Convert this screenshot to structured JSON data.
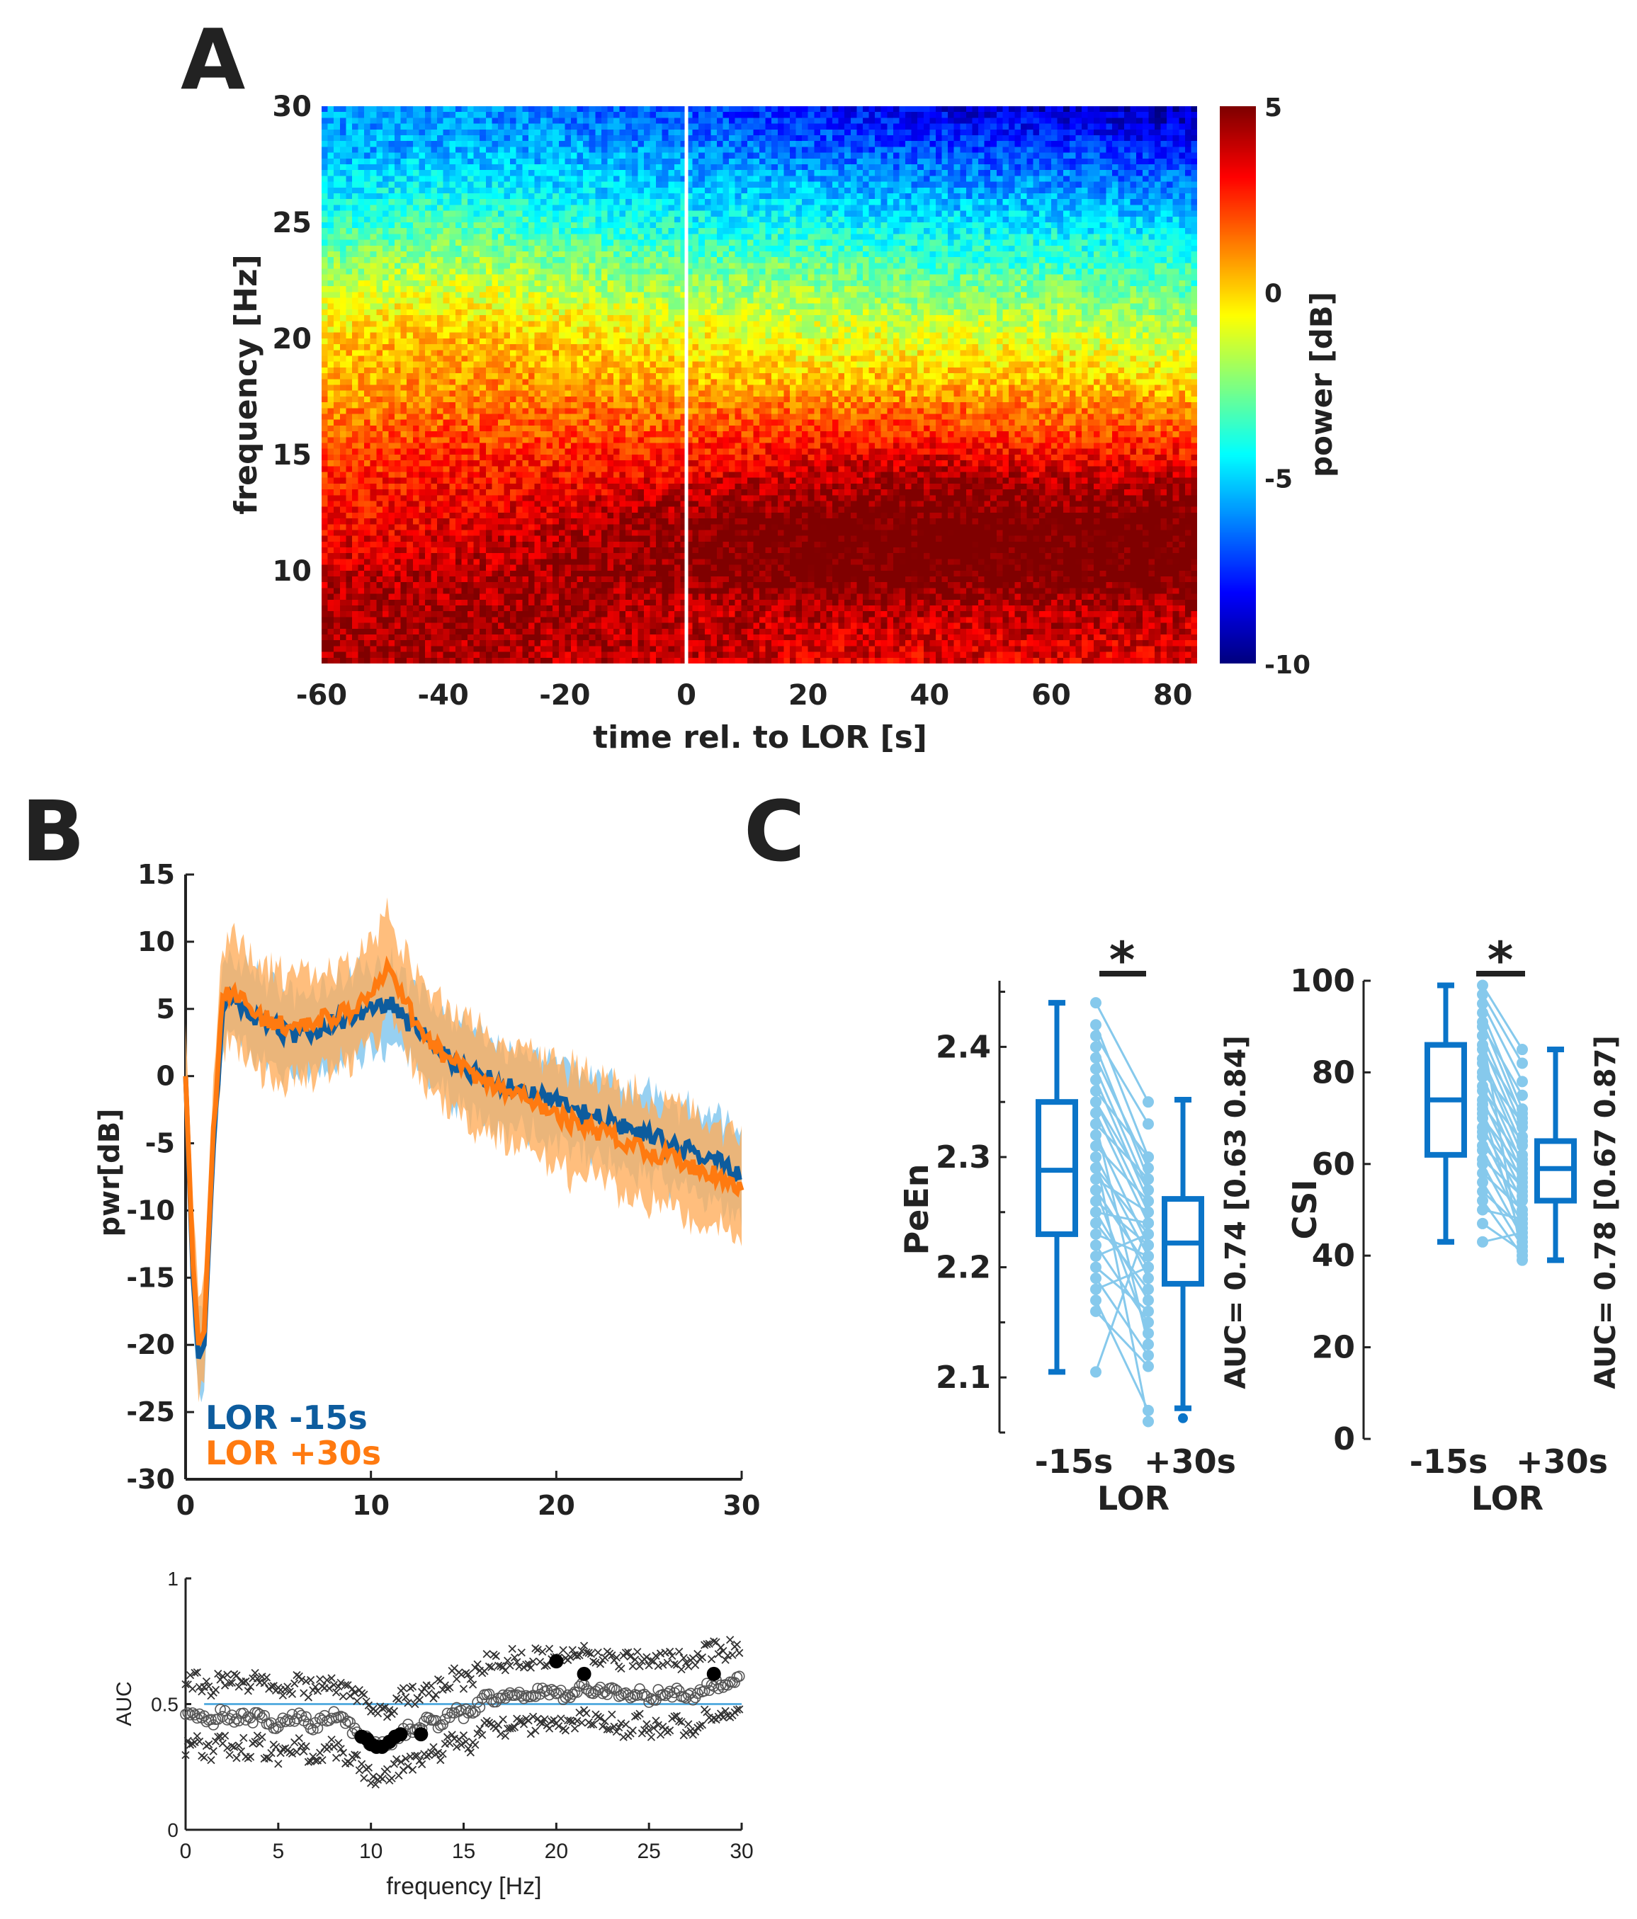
{
  "panel_labels": {
    "a": "A",
    "b": "B",
    "c": "C"
  },
  "colors": {
    "blue_line": "#0d5c9e",
    "blue_band": "#8ccbf0",
    "orange_line": "#ff7a10",
    "orange_band": "#ffae5c",
    "box": "#0a74c8",
    "pair": "#86c9ec",
    "chance": "#5aaee0"
  },
  "chart_data": [
    {
      "id": "spectrogram",
      "type": "heatmap",
      "xlabel": "time rel. to LOR [s]",
      "ylabel": "frequency [Hz]",
      "xlim": [
        -60,
        84
      ],
      "ylim": [
        6,
        30
      ],
      "xticks": [
        -60,
        -40,
        -20,
        0,
        20,
        40,
        60,
        80
      ],
      "yticks": [
        10,
        15,
        20,
        25,
        30
      ],
      "marker_line_x": 0,
      "colorbar": {
        "label": "power [dB]",
        "range": [
          -10,
          5
        ],
        "ticks": [
          -10,
          -5,
          0,
          5
        ],
        "colormap": "jet"
      },
      "freqs": [
        6,
        8,
        10,
        12,
        14,
        16,
        18,
        20,
        22,
        24,
        26,
        28,
        30
      ],
      "times": [
        -60,
        -40,
        -20,
        0,
        20,
        40,
        60,
        84
      ],
      "power_db": [
        [
          4.5,
          4.5,
          4,
          4,
          3.5,
          3.5,
          3.5,
          3.5
        ],
        [
          4.5,
          4.5,
          4.5,
          4,
          4,
          4,
          4,
          4
        ],
        [
          4,
          4,
          4.5,
          5,
          5.5,
          5.5,
          5.5,
          5.5
        ],
        [
          3,
          3.5,
          4,
          5,
          5.5,
          5.5,
          5.5,
          5.5
        ],
        [
          2.5,
          3,
          3,
          3.5,
          4,
          4.5,
          4,
          4
        ],
        [
          1.5,
          2,
          2,
          2,
          2.5,
          2.5,
          2,
          2
        ],
        [
          0.5,
          1,
          1,
          0.5,
          0.5,
          0.5,
          0.5,
          0
        ],
        [
          0,
          0.5,
          0,
          -0.5,
          -1,
          -1,
          -1,
          -1.5
        ],
        [
          -1.5,
          -1,
          -1.5,
          -2,
          -2,
          -2.5,
          -2.5,
          -3
        ],
        [
          -3,
          -2.5,
          -3,
          -3.5,
          -3.5,
          -4,
          -4,
          -4
        ],
        [
          -4.5,
          -4,
          -4.5,
          -5,
          -5,
          -5.5,
          -5.5,
          -6
        ],
        [
          -5.5,
          -5.5,
          -5.5,
          -6,
          -6.5,
          -7,
          -7,
          -7.5
        ],
        [
          -6,
          -6,
          -6.5,
          -7,
          -8,
          -8.5,
          -9,
          -9.5
        ]
      ]
    },
    {
      "id": "spectrum",
      "type": "line",
      "xlabel": "",
      "ylabel": "pwr[dB]",
      "xlim": [
        0,
        30
      ],
      "ylim": [
        -30,
        15
      ],
      "xticks": [
        0,
        10,
        20,
        30
      ],
      "yticks": [
        -30,
        -25,
        -20,
        -15,
        -10,
        -5,
        0,
        5,
        10,
        15
      ],
      "legend_position": "bottom-left",
      "x": [
        0,
        0.4,
        0.7,
        1,
        1.5,
        2,
        2.5,
        3,
        4,
        5,
        6,
        7,
        8,
        9,
        10,
        11,
        12,
        13,
        14,
        15,
        16,
        17,
        18,
        19,
        20,
        21,
        22,
        23,
        24,
        25,
        26,
        27,
        28,
        29,
        30
      ],
      "series": [
        {
          "name": "LOR -15s",
          "values": [
            0,
            -15,
            -21,
            -20,
            -5,
            5,
            6,
            5,
            4,
            3.5,
            3,
            3.5,
            4,
            4.5,
            5,
            5.5,
            4,
            3,
            1.5,
            0.5,
            0,
            -0.5,
            -1,
            -1.5,
            -2,
            -2.5,
            -3,
            -3.5,
            -4,
            -4.5,
            -5,
            -5.5,
            -6,
            -6.5,
            -7.5
          ],
          "band": 3
        },
        {
          "name": "LOR +30s",
          "values": [
            0,
            -14,
            -20,
            -19,
            -4,
            5.5,
            6.5,
            5.5,
            4.5,
            4,
            3.5,
            4,
            4.5,
            5,
            6,
            8,
            5,
            3,
            1.5,
            0.5,
            -0.5,
            -1,
            -1.5,
            -2,
            -3,
            -3.5,
            -4,
            -4.5,
            -5,
            -5.5,
            -6,
            -6.5,
            -7,
            -7.5,
            -8.5
          ],
          "band": 3.8
        }
      ]
    },
    {
      "id": "auc_spectrum",
      "type": "scatter",
      "xlabel": "frequency [Hz]",
      "ylabel": "AUC",
      "xlim": [
        0,
        30
      ],
      "ylim": [
        0,
        1
      ],
      "xticks": [
        0,
        5,
        10,
        15,
        20,
        25,
        30
      ],
      "yticks": [
        0,
        0.5,
        1
      ],
      "chance_level": 0.5,
      "x": [
        0,
        0.5,
        1,
        1.5,
        2,
        2.5,
        3,
        3.5,
        4,
        4.5,
        5,
        5.5,
        6,
        6.5,
        7,
        7.5,
        8,
        8.5,
        9,
        9.5,
        10,
        10.5,
        11,
        11.5,
        12,
        12.5,
        13,
        13.5,
        14,
        14.5,
        15,
        15.5,
        16,
        16.5,
        17,
        17.5,
        18,
        18.5,
        19,
        19.5,
        20,
        20.5,
        21,
        21.5,
        22,
        22.5,
        23,
        23.5,
        24,
        24.5,
        25,
        25.5,
        26,
        26.5,
        27,
        27.5,
        28,
        28.5,
        29,
        29.5,
        30
      ],
      "auc": [
        0.45,
        0.46,
        0.44,
        0.43,
        0.47,
        0.44,
        0.45,
        0.44,
        0.46,
        0.42,
        0.42,
        0.43,
        0.45,
        0.43,
        0.41,
        0.44,
        0.45,
        0.43,
        0.4,
        0.37,
        0.34,
        0.33,
        0.35,
        0.37,
        0.4,
        0.38,
        0.43,
        0.42,
        0.44,
        0.48,
        0.46,
        0.47,
        0.52,
        0.53,
        0.51,
        0.55,
        0.54,
        0.53,
        0.55,
        0.54,
        0.56,
        0.53,
        0.55,
        0.57,
        0.54,
        0.56,
        0.55,
        0.52,
        0.53,
        0.55,
        0.5,
        0.54,
        0.53,
        0.55,
        0.52,
        0.54,
        0.56,
        0.58,
        0.57,
        0.59,
        0.6
      ],
      "ci_offsets": [
        -0.12,
        0.14
      ],
      "significant": [
        [
          9.5,
          0.37
        ],
        [
          9.8,
          0.36
        ],
        [
          10,
          0.34
        ],
        [
          10.3,
          0.33
        ],
        [
          10.6,
          0.33
        ],
        [
          11,
          0.35
        ],
        [
          11.3,
          0.37
        ],
        [
          11.6,
          0.38
        ],
        [
          12.7,
          0.38
        ],
        [
          20,
          0.67
        ],
        [
          21.5,
          0.62
        ],
        [
          28.5,
          0.62
        ]
      ]
    },
    {
      "id": "peen",
      "type": "box",
      "ylabel": "PeEn",
      "xlabel": "LOR",
      "categories": [
        "-15s",
        "+30s"
      ],
      "ylim": [
        2.05,
        2.46
      ],
      "yticks": [
        2.1,
        2.2,
        2.3,
        2.4
      ],
      "yticks_unlabeled": [
        2.05,
        2.15,
        2.25,
        2.35,
        2.45
      ],
      "boxes": [
        {
          "whisker_low": 2.105,
          "q1": 2.23,
          "median": 2.288,
          "q3": 2.35,
          "whisker_high": 2.44,
          "outliers": []
        },
        {
          "whisker_low": 2.072,
          "q1": 2.185,
          "median": 2.222,
          "q3": 2.262,
          "whisker_high": 2.352,
          "outliers": [
            2.063
          ]
        }
      ],
      "pairs": [
        [
          2.44,
          2.35
        ],
        [
          2.42,
          2.3
        ],
        [
          2.41,
          2.33
        ],
        [
          2.4,
          2.28
        ],
        [
          2.39,
          2.29
        ],
        [
          2.38,
          2.27
        ],
        [
          2.37,
          2.26
        ],
        [
          2.36,
          2.3
        ],
        [
          2.35,
          2.25
        ],
        [
          2.34,
          2.24
        ],
        [
          2.33,
          2.28
        ],
        [
          2.32,
          2.22
        ],
        [
          2.31,
          2.26
        ],
        [
          2.3,
          2.21
        ],
        [
          2.29,
          2.23
        ],
        [
          2.29,
          2.19
        ],
        [
          2.28,
          2.25
        ],
        [
          2.27,
          2.2
        ],
        [
          2.26,
          2.22
        ],
        [
          2.25,
          2.17
        ],
        [
          2.25,
          2.24
        ],
        [
          2.24,
          2.18
        ],
        [
          2.23,
          2.21
        ],
        [
          2.22,
          2.15
        ],
        [
          2.21,
          2.23
        ],
        [
          2.2,
          2.16
        ],
        [
          2.19,
          2.12
        ],
        [
          2.18,
          2.2
        ],
        [
          2.17,
          2.07
        ],
        [
          2.16,
          2.11
        ],
        [
          2.3,
          2.06
        ],
        [
          2.27,
          2.14
        ],
        [
          2.105,
          2.24
        ],
        [
          2.33,
          2.13
        ],
        [
          2.35,
          2.27
        ]
      ],
      "significance": "*",
      "auc_text": "AUC= 0.74 [0.63 0.84]"
    },
    {
      "id": "csi",
      "type": "box",
      "ylabel": "CSI",
      "xlabel": "LOR",
      "categories": [
        "-15s",
        "+30s"
      ],
      "ylim": [
        0,
        100
      ],
      "yticks": [
        0,
        20,
        40,
        60,
        80,
        100
      ],
      "boxes": [
        {
          "whisker_low": 43,
          "q1": 62,
          "median": 74,
          "q3": 86,
          "whisker_high": 99,
          "outliers": []
        },
        {
          "whisker_low": 39,
          "q1": 52,
          "median": 59,
          "q3": 65,
          "whisker_high": 85,
          "outliers": []
        }
      ],
      "pairs": [
        [
          99,
          85
        ],
        [
          97,
          82
        ],
        [
          95,
          78
        ],
        [
          93,
          72
        ],
        [
          91,
          70
        ],
        [
          90,
          75
        ],
        [
          88,
          68
        ],
        [
          86,
          66
        ],
        [
          85,
          71
        ],
        [
          83,
          64
        ],
        [
          82,
          62
        ],
        [
          80,
          69
        ],
        [
          79,
          60
        ],
        [
          77,
          58
        ],
        [
          76,
          65
        ],
        [
          74,
          56
        ],
        [
          73,
          61
        ],
        [
          71,
          54
        ],
        [
          70,
          59
        ],
        [
          68,
          52
        ],
        [
          67,
          57
        ],
        [
          66,
          49
        ],
        [
          64,
          55
        ],
        [
          63,
          47
        ],
        [
          61,
          53
        ],
        [
          60,
          44
        ],
        [
          58,
          50
        ],
        [
          56,
          42
        ],
        [
          54,
          46
        ],
        [
          52,
          40
        ],
        [
          50,
          48
        ],
        [
          47,
          41
        ],
        [
          43,
          45
        ],
        [
          88,
          39
        ],
        [
          72,
          43
        ]
      ],
      "significance": "*",
      "auc_text": "AUC= 0.78 [0.67 0.87]"
    }
  ]
}
